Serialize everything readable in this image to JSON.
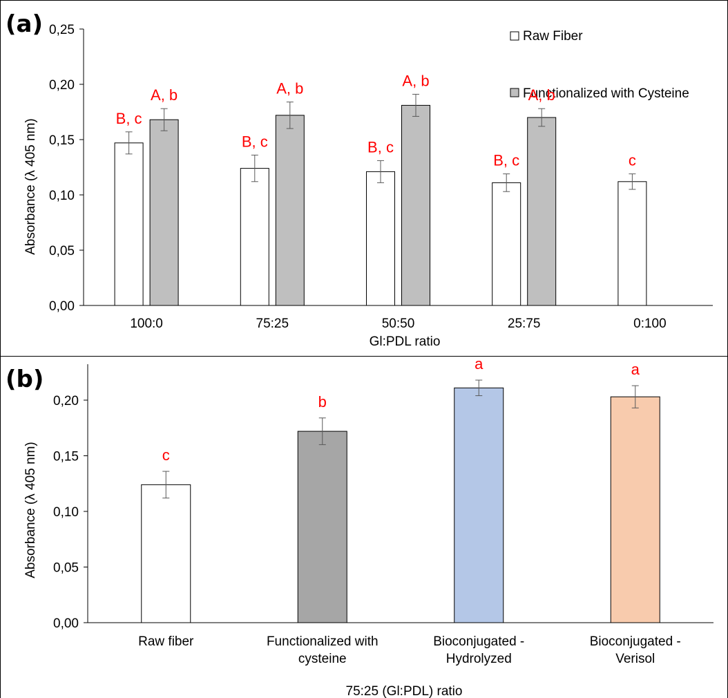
{
  "chart_data": [
    {
      "panel": "(a)",
      "type": "bar",
      "xlabel": "Gl:PDL ratio",
      "ylabel": "Absorbance (λ 405 nm)",
      "ylim": [
        0,
        0.25
      ],
      "yticks": [
        "0,00",
        "0,05",
        "0,10",
        "0,15",
        "0,20",
        "0,25"
      ],
      "categories": [
        "100:0",
        "75:25",
        "50:50",
        "25:75",
        "0:100"
      ],
      "legend_position": "top-right",
      "series": [
        {
          "name": "Raw Fiber",
          "color": "#ffffff",
          "values": [
            0.147,
            0.124,
            0.121,
            0.111,
            0.112
          ],
          "errors": [
            0.01,
            0.012,
            0.01,
            0.008,
            0.007
          ],
          "labels": [
            "B, c",
            "B, c",
            "B, c",
            "B, c",
            "c"
          ]
        },
        {
          "name": "Functionalized with Cysteine",
          "color": "#bfbfbf",
          "values": [
            0.168,
            0.172,
            0.181,
            0.17,
            null
          ],
          "errors": [
            0.01,
            0.012,
            0.01,
            0.008,
            null
          ],
          "labels": [
            "A, b",
            "A, b",
            "A, b",
            "A, b",
            ""
          ]
        }
      ]
    },
    {
      "panel": "(b)",
      "type": "bar",
      "xlabel": "75:25 (Gl:PDL) ratio",
      "ylabel": "Absorbance (λ 405 nm)",
      "ylim": [
        0,
        0.2
      ],
      "yticks": [
        "0,00",
        "0,05",
        "0,10",
        "0,15",
        "0,20"
      ],
      "categories": [
        [
          "Raw fiber"
        ],
        [
          "Functionalized with",
          "cysteine"
        ],
        [
          "Bioconjugated -",
          "Hydrolyzed"
        ],
        [
          "Bioconjugated -",
          "Verisol"
        ]
      ],
      "values": [
        0.124,
        0.172,
        0.211,
        0.203
      ],
      "errors": [
        0.012,
        0.012,
        0.007,
        0.01
      ],
      "colors": [
        "#ffffff",
        "#a6a6a6",
        "#b4c7e7",
        "#f8cbad"
      ],
      "labels": [
        "c",
        "b",
        "a",
        "a"
      ]
    }
  ]
}
